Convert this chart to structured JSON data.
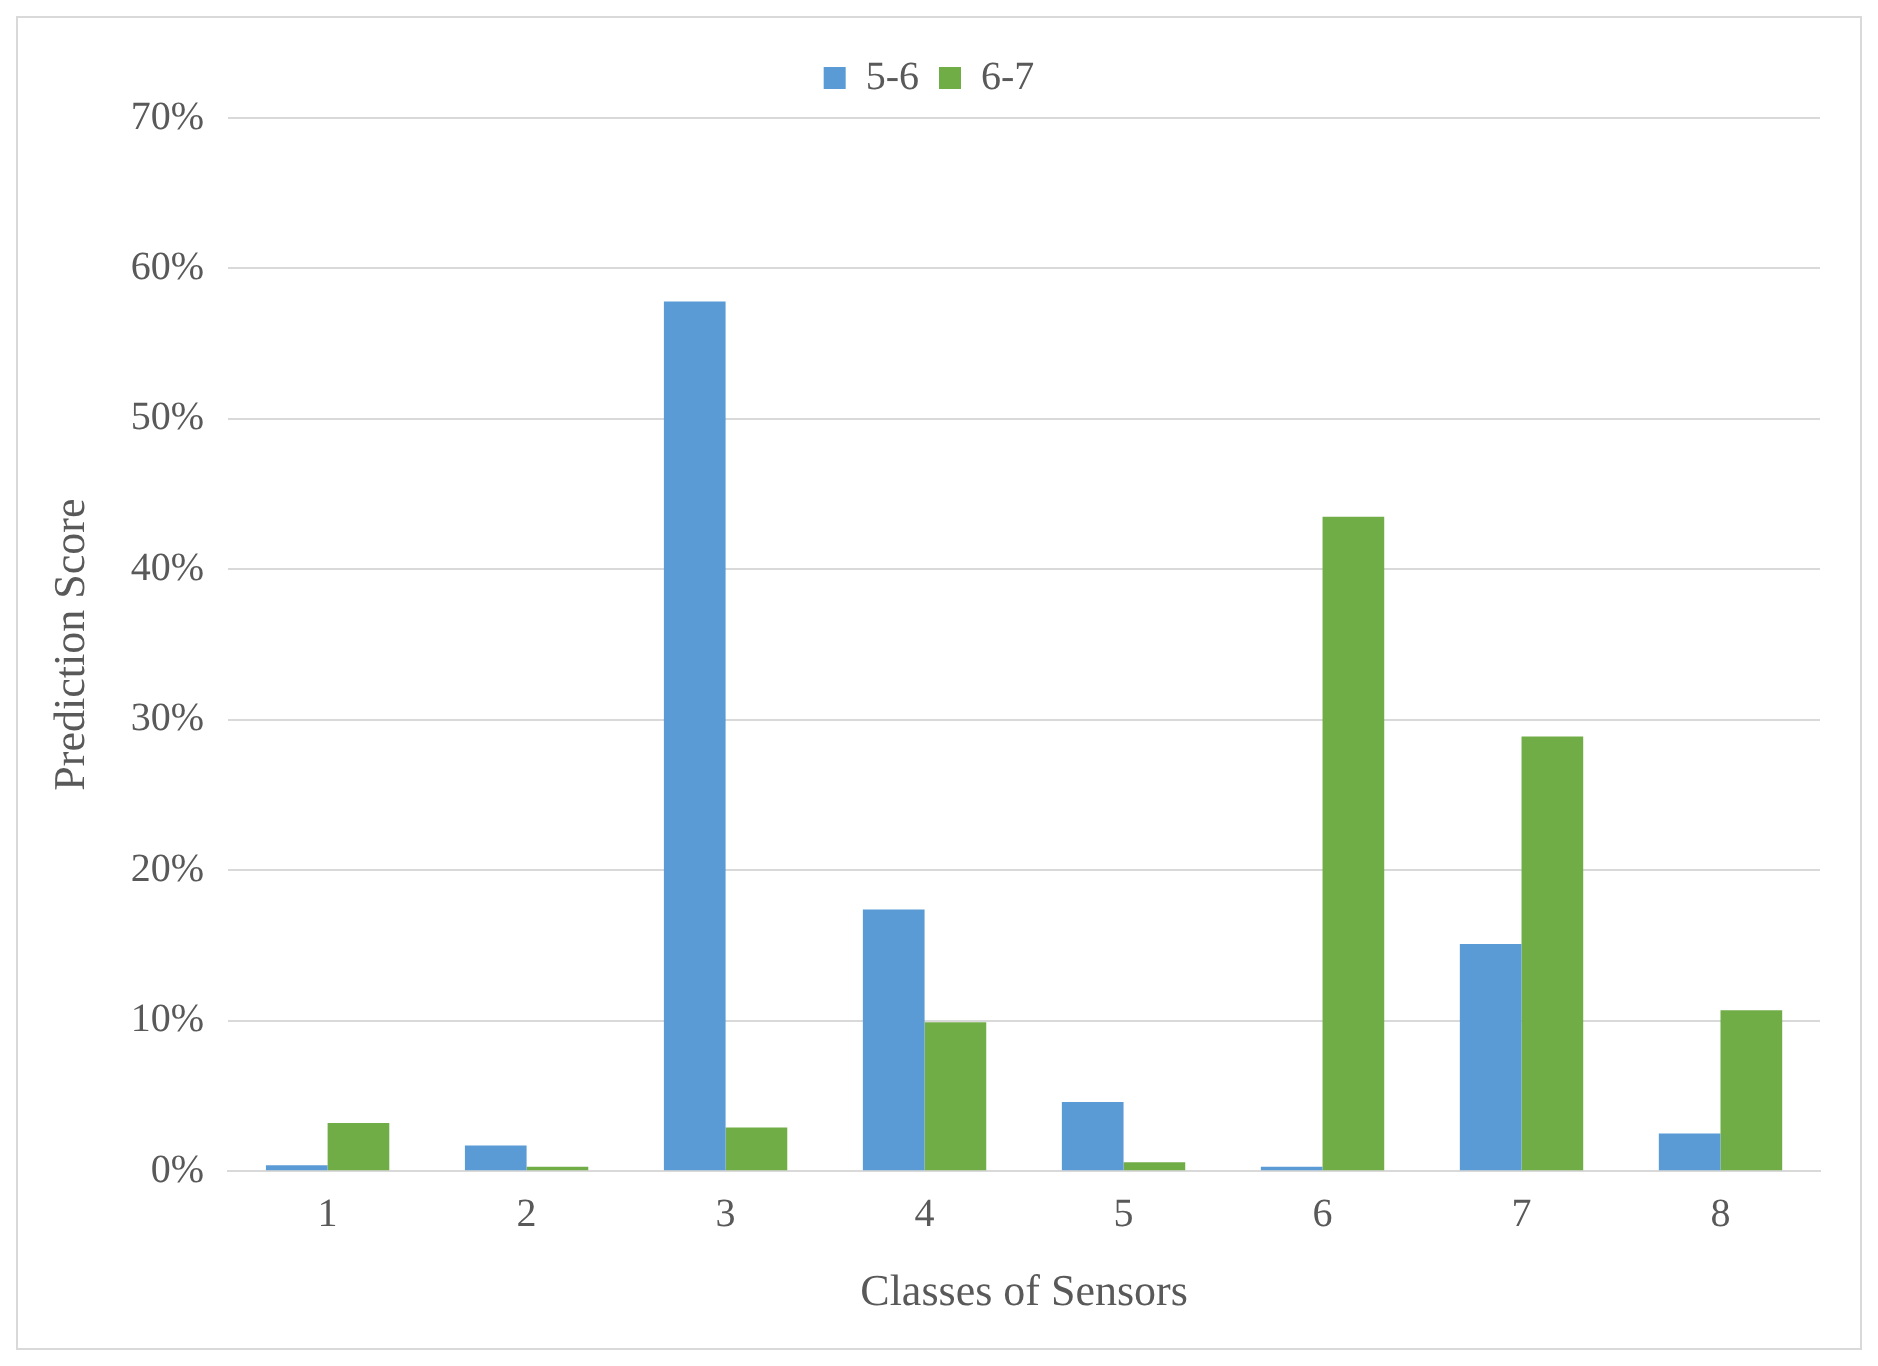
{
  "chart_data": {
    "type": "bar",
    "xlabel": "Classes of Sensors",
    "ylabel": "Prediction Score",
    "categories": [
      "1",
      "2",
      "3",
      "4",
      "5",
      "6",
      "7",
      "8"
    ],
    "series": [
      {
        "name": "5-6",
        "color": "#5b9bd5",
        "values": [
          0.4,
          1.7,
          57.8,
          17.4,
          4.6,
          0.3,
          15.1,
          2.5
        ]
      },
      {
        "name": "6-7",
        "color": "#70ad47",
        "values": [
          3.2,
          0.3,
          2.9,
          9.9,
          0.6,
          43.5,
          28.9,
          10.7
        ]
      }
    ],
    "ylim": [
      0,
      70
    ],
    "yticks": [
      {
        "value": 0,
        "label": "0%"
      },
      {
        "value": 10,
        "label": "10%"
      },
      {
        "value": 20,
        "label": "20%"
      },
      {
        "value": 30,
        "label": "30%"
      },
      {
        "value": 40,
        "label": "40%"
      },
      {
        "value": 50,
        "label": "50%"
      },
      {
        "value": 60,
        "label": "60%"
      },
      {
        "value": 70,
        "label": "70%"
      }
    ],
    "grid": "y",
    "legend": "top"
  }
}
